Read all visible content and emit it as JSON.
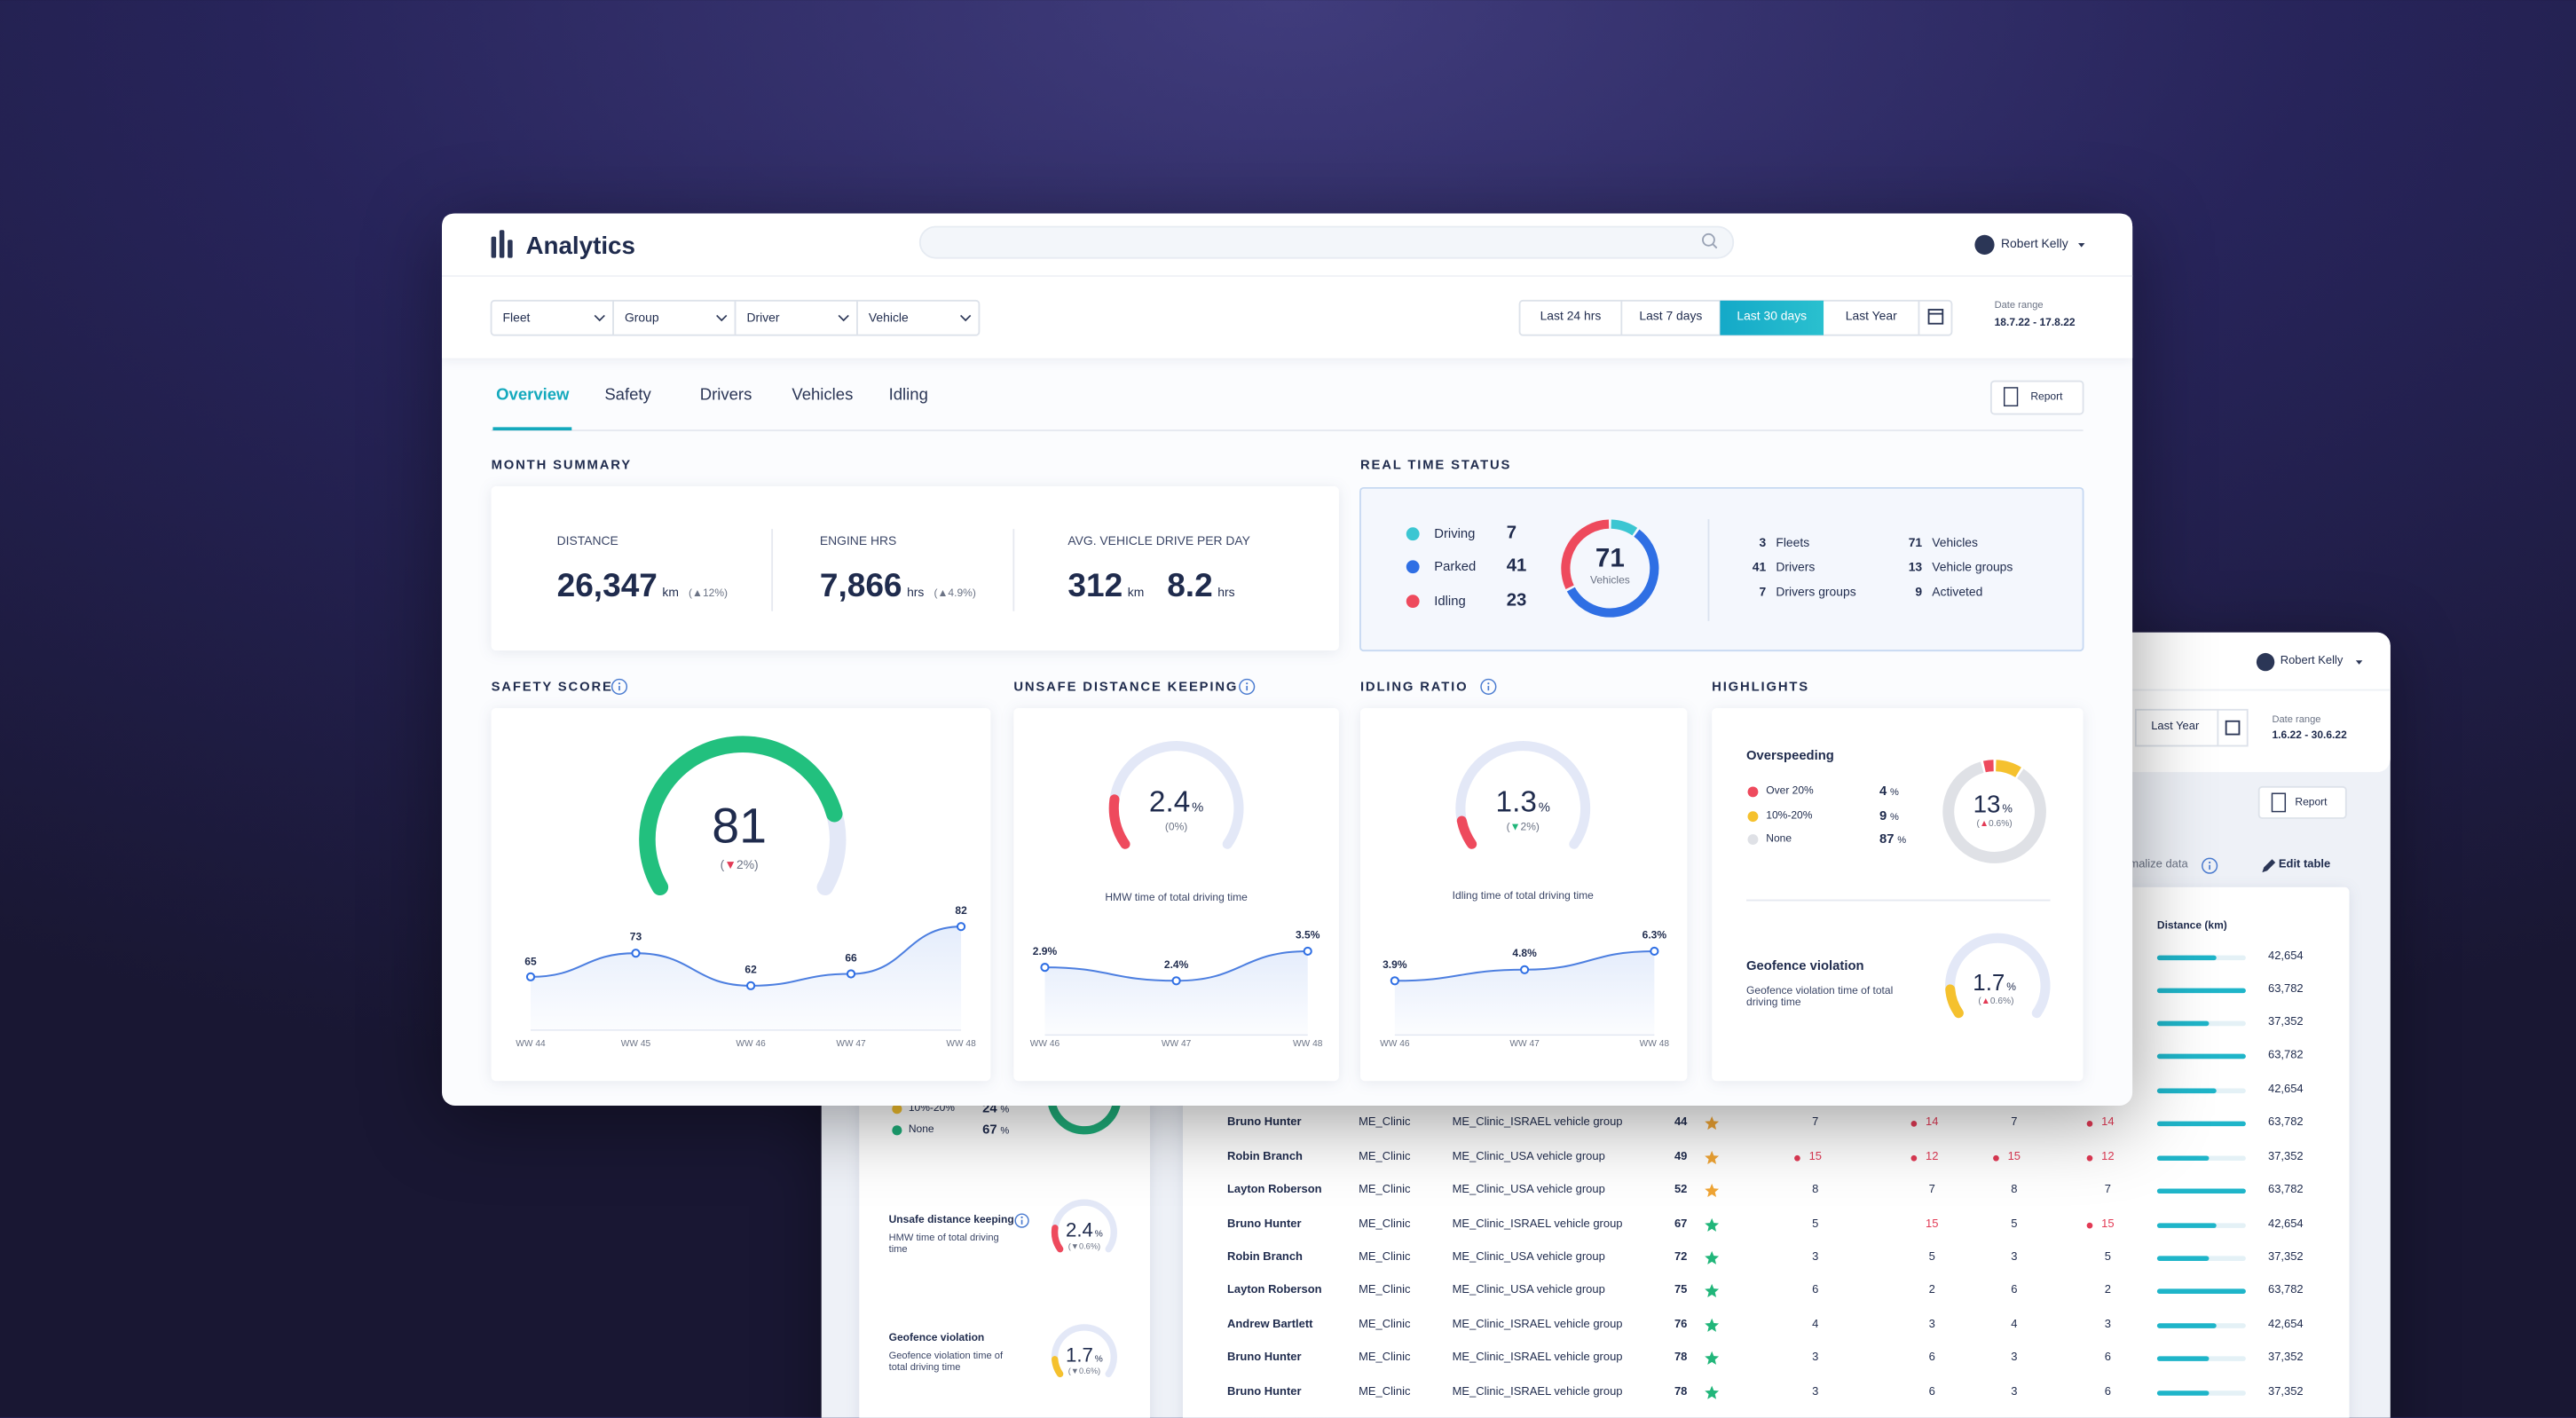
{
  "background_window": {
    "user": "Robert Kelly",
    "date_button": "Last Year",
    "date_range_label": "Date range",
    "date_range": "1.6.22 - 30.6.22",
    "report": "Report",
    "normalize_data": "malize data",
    "edit_table": "Edit table",
    "overspeeding": {
      "legend": [
        {
          "name": "10%-20%",
          "value": 24,
          "unit": "%",
          "color": "#f5c12e"
        },
        {
          "name": "None",
          "value": 67,
          "unit": "%",
          "color": "#1fae7a"
        }
      ]
    },
    "unsafe_distance": {
      "title": "Unsafe distance keeping",
      "caption": "HMW time of total driving time",
      "value": 2.4,
      "unit": "%",
      "change": "(▼0.6%)",
      "color": "#ee4a5d"
    },
    "geofence": {
      "title": "Geofence violation",
      "caption": "Geofence violation time of total driving time",
      "value": 1.7,
      "unit": "%",
      "change": "(▼0.6%)",
      "color": "#f5c12e"
    },
    "table": {
      "distance_header": "Distance (km)",
      "rows": [
        {
          "distance": "42,654"
        },
        {
          "distance": "63,782"
        },
        {
          "distance": "37,352"
        },
        {
          "distance": "63,782"
        },
        {
          "distance": "42,654"
        },
        {
          "name": "Bruno Hunter",
          "clinic": "ME_Clinic",
          "group": "ME_Clinic_ISRAEL vehicle group",
          "score": 44,
          "star_color": "#f0a534",
          "cells": [
            7,
            {
              "value": 14,
              "color": "#e23a55",
              "dot": true
            },
            7,
            {
              "value": 14,
              "color": "#e23a55",
              "dot": true
            }
          ],
          "distance": "63,782"
        },
        {
          "name": "Robin Branch",
          "clinic": "ME_Clinic",
          "group": "ME_Clinic_USA vehicle group",
          "score": 49,
          "star_color": "#f0a534",
          "cells": [
            {
              "value": 15,
              "color": "#e23a55",
              "dot": true
            },
            {
              "value": 12,
              "color": "#e23a55",
              "dot": true
            },
            {
              "value": 15,
              "color": "#e23a55",
              "dot": true
            },
            {
              "value": 12,
              "color": "#e23a55",
              "dot": true
            }
          ],
          "distance": "37,352"
        },
        {
          "name": "Layton Roberson",
          "clinic": "ME_Clinic",
          "group": "ME_Clinic_USA vehicle group",
          "score": 52,
          "star_color": "#f0a534",
          "cells": [
            8,
            7,
            8,
            7
          ],
          "distance": "63,782"
        },
        {
          "name": "Bruno Hunter",
          "clinic": "ME_Clinic",
          "group": "ME_Clinic_ISRAEL vehicle group",
          "score": 67,
          "star_color": "#21b67a",
          "cells": [
            5,
            {
              "value": 15,
              "color": "#e23a55",
              "dot": false
            },
            5,
            {
              "value": 15,
              "color": "#e23a55",
              "dot": true
            }
          ],
          "distance": "42,654"
        },
        {
          "name": "Robin Branch",
          "clinic": "ME_Clinic",
          "group": "ME_Clinic_USA vehicle group",
          "score": 72,
          "star_color": "#21b67a",
          "cells": [
            3,
            5,
            3,
            5
          ],
          "distance": "37,352"
        },
        {
          "name": "Layton Roberson",
          "clinic": "ME_Clinic",
          "group": "ME_Clinic_USA vehicle group",
          "score": 75,
          "star_color": "#21b67a",
          "cells": [
            6,
            2,
            6,
            2
          ],
          "distance": "63,782"
        },
        {
          "name": "Andrew Bartlett",
          "clinic": "ME_Clinic",
          "group": "ME_Clinic_ISRAEL vehicle group",
          "score": 76,
          "star_color": "#21b67a",
          "cells": [
            4,
            3,
            4,
            3
          ],
          "distance": "42,654"
        },
        {
          "name": "Bruno Hunter",
          "clinic": "ME_Clinic",
          "group": "ME_Clinic_ISRAEL vehicle group",
          "score": 78,
          "star_color": "#21b67a",
          "cells": [
            3,
            6,
            3,
            6
          ],
          "distance": "37,352"
        },
        {
          "name": "Bruno Hunter",
          "clinic": "ME_Clinic",
          "group": "ME_Clinic_ISRAEL vehicle group",
          "score": 78,
          "star_color": "#21b67a",
          "cells": [
            3,
            6,
            3,
            6
          ],
          "distance": "37,352"
        }
      ]
    }
  },
  "main_window": {
    "app_title": "Analytics",
    "user": "Robert Kelly",
    "filters": [
      "Fleet",
      "Group",
      "Driver",
      "Vehicle"
    ],
    "date_buttons": [
      "Last 24 hrs",
      "Last 7 days",
      "Last 30 days",
      "Last Year"
    ],
    "active_date_button": 2,
    "date_range_label": "Date range",
    "date_range": "18.7.22 - 17.8.22",
    "tabs": [
      "Overview",
      "Safety",
      "Drivers",
      "Vehicles",
      "Idling"
    ],
    "active_tab": 0,
    "report": "Report",
    "month_summary": {
      "title": "MONTH SUMMARY",
      "metrics": [
        {
          "label": "DISTANCE",
          "values": [
            {
              "value": "26,347",
              "unit": "km"
            }
          ],
          "change": "(▲12%)"
        },
        {
          "label": "ENGINE HRS",
          "values": [
            {
              "value": "7,866",
              "unit": "hrs"
            }
          ],
          "change": "(▲4.9%)"
        },
        {
          "label": "AVG. VEHICLE DRIVE PER DAY",
          "values": [
            {
              "value": "312",
              "unit": "km"
            },
            {
              "value": "8.2",
              "unit": "hrs"
            }
          ]
        }
      ]
    },
    "real_time_status": {
      "title": "REAL TIME STATUS",
      "total": 71,
      "total_label": "Vehicles",
      "statuses": [
        {
          "name": "Driving",
          "value": 7,
          "color": "#3cc6d2"
        },
        {
          "name": "Parked",
          "value": 41,
          "color": "#2f6fe4"
        },
        {
          "name": "Idling",
          "value": 23,
          "color": "#ee4a5d"
        }
      ],
      "stats": [
        {
          "value": 3,
          "label": "Fleets"
        },
        {
          "value": 41,
          "label": "Drivers"
        },
        {
          "value": 7,
          "label": "Drivers groups"
        },
        {
          "value": 71,
          "label": "Vehicles"
        },
        {
          "value": 13,
          "label": "Vehicle groups"
        },
        {
          "value": 9,
          "label": "Activeted"
        }
      ]
    },
    "safety_score": {
      "title": "SAFETY SCORE",
      "value": 81,
      "change": "(▼2%)",
      "arrow_color": "#e23a55",
      "color": "#22c07e",
      "trend": {
        "x": [
          "WW 44",
          "WW 45",
          "WW 46",
          "WW 47",
          "WW 48"
        ],
        "values": [
          65,
          73,
          62,
          66,
          82
        ]
      }
    },
    "unsafe_distance": {
      "title": "UNSAFE DISTANCE KEEPING",
      "value": 2.4,
      "unit": "%",
      "change": "(0%)",
      "color": "#ee4a5d",
      "caption": "HMW time of total driving time",
      "trend": {
        "x": [
          "WW 46",
          "WW 47",
          "WW 48"
        ],
        "values": [
          2.9,
          2.4,
          3.5
        ],
        "value_labels": [
          "2.9%",
          "2.4%",
          "3.5%"
        ]
      }
    },
    "idling_ratio": {
      "title": "IDLING RATIO",
      "value": 1.3,
      "unit": "%",
      "change": "(▼2%)",
      "arrow_color": "#21b67a",
      "color": "#ee4a5d",
      "caption": "Idling time of total driving time",
      "trend": {
        "x": [
          "WW 46",
          "WW 47",
          "WW 48"
        ],
        "values": [
          3.9,
          4.8,
          6.3
        ],
        "value_labels": [
          "3.9%",
          "4.8%",
          "6.3%"
        ]
      }
    },
    "highlights": {
      "title": "HIGHLIGHTS",
      "overspeeding": {
        "title": "Overspeeding",
        "legend": [
          {
            "name": "Over 20%",
            "value": 4,
            "unit": "%",
            "color": "#ee4a5d"
          },
          {
            "name": "10%-20%",
            "value": 9,
            "unit": "%",
            "color": "#f5c12e"
          },
          {
            "name": "None",
            "value": 87,
            "unit": "%",
            "color": "#dfe1e6"
          }
        ],
        "value": 13,
        "unit": "%",
        "change": "(▲0.6%)",
        "arrow_color": "#e23a55"
      },
      "geofence": {
        "title": "Geofence violation",
        "caption": "Geofence violation time of total driving time",
        "value": 1.7,
        "unit": "%",
        "change": "(▲0.6%)",
        "arrow_color": "#e23a55",
        "color": "#f5c12e"
      }
    }
  }
}
